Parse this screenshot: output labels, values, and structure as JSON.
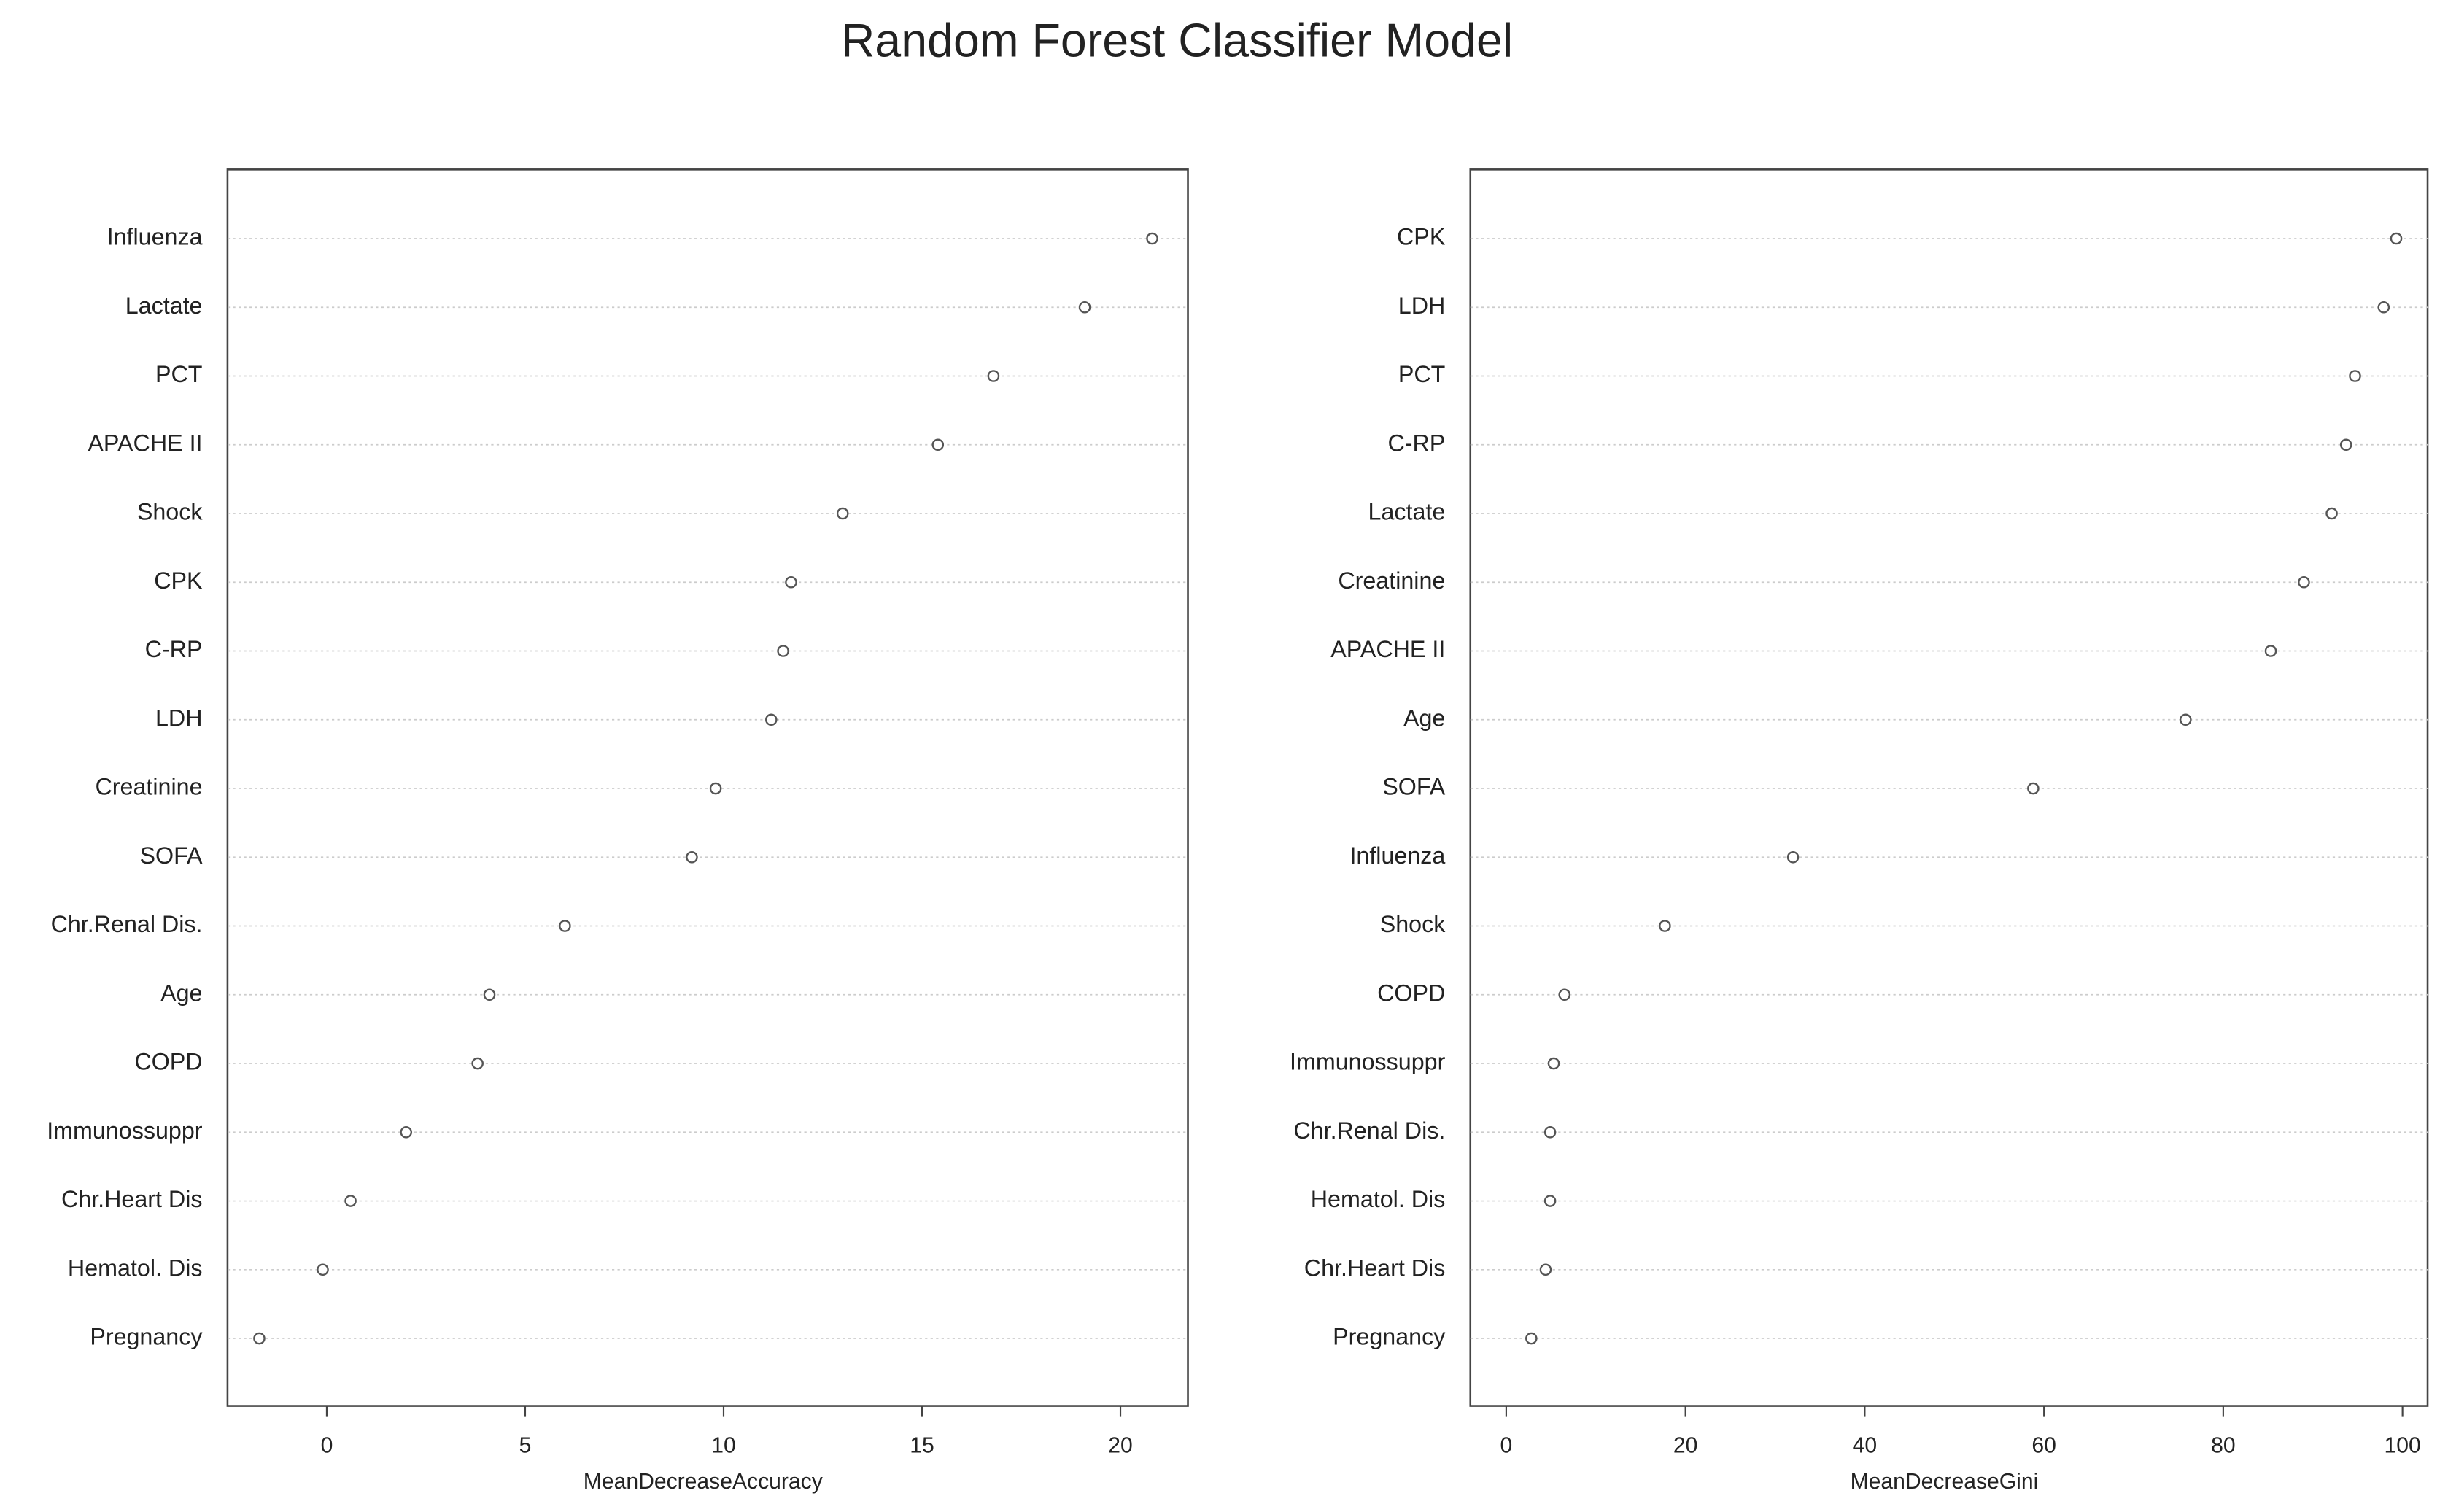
{
  "title": "Random Forest Classifier  Model",
  "chart_data": [
    {
      "type": "dot",
      "xlabel": "MeanDecreaseAccuracy",
      "categories": [
        "Influenza",
        "Lactate",
        "PCT",
        "APACHE II",
        "Shock",
        "CPK",
        "C-RP",
        "LDH",
        "Creatinine",
        "SOFA",
        "Chr.Renal Dis.",
        "Age",
        "COPD",
        "Immunossuppr",
        "Chr.Heart Dis",
        "Hematol. Dis",
        "Pregnancy"
      ],
      "values": [
        20.8,
        19.1,
        16.8,
        15.4,
        13.0,
        11.7,
        11.5,
        11.2,
        9.8,
        9.2,
        6.0,
        4.1,
        3.8,
        2.0,
        0.6,
        -0.1,
        -1.7
      ],
      "xlim": [
        -2.5,
        21.7
      ],
      "xticks": [
        0,
        5,
        10,
        15,
        20
      ],
      "grid": true,
      "color": "#555555"
    },
    {
      "type": "dot",
      "xlabel": "MeanDecreaseGini",
      "categories": [
        "CPK",
        "LDH",
        "PCT",
        "C-RP",
        "Lactate",
        "Creatinine",
        "APACHE II",
        "Age",
        "SOFA",
        "Influenza",
        "Shock",
        "COPD",
        "Immunossuppr",
        "Chr.Renal Dis.",
        "Hematol. Dis",
        "Chr.Heart Dis",
        "Pregnancy"
      ],
      "values": [
        99.3,
        97.9,
        94.7,
        93.7,
        92.1,
        89.0,
        85.3,
        75.8,
        58.8,
        32.0,
        17.7,
        6.5,
        5.3,
        4.9,
        4.9,
        4.4,
        2.8
      ],
      "xlim": [
        -4.0,
        102.8
      ],
      "xticks": [
        0,
        20,
        40,
        60,
        80,
        100
      ],
      "grid": true,
      "color": "#555555"
    }
  ]
}
